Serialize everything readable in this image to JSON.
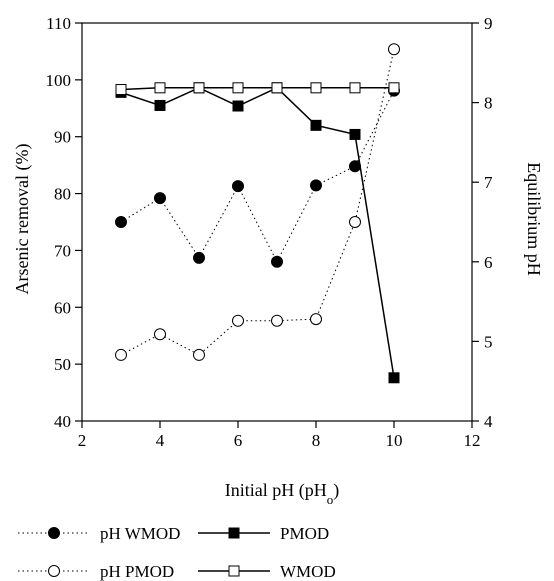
{
  "chart_data": {
    "type": "line",
    "title": "",
    "xlabel": "Initial pH (pH",
    "xlabel_sub": "o",
    "xlabel_suffix": ")",
    "ylabel": "Arsenic removal (%)",
    "y2label": "Equilibrium pH",
    "xlim": [
      2,
      12
    ],
    "ylim": [
      40,
      110
    ],
    "y2lim": [
      4,
      9
    ],
    "xticks": [
      2,
      4,
      6,
      8,
      10,
      12
    ],
    "yticks": [
      40,
      50,
      60,
      70,
      80,
      90,
      100,
      110
    ],
    "y2ticks": [
      4,
      5,
      6,
      7,
      8,
      9
    ],
    "grid": false,
    "legend_position": "bottom",
    "series": [
      {
        "name": "pH WMOD",
        "axis": "right",
        "style": "dotted",
        "marker": "filled-circle",
        "x": [
          3,
          4,
          5,
          6,
          7,
          8,
          9,
          10
        ],
        "y": [
          6.5,
          6.8,
          6.05,
          6.95,
          6.0,
          6.96,
          7.2,
          8.15
        ]
      },
      {
        "name": "PMOD",
        "axis": "left",
        "style": "solid",
        "marker": "filled-square",
        "x": [
          3,
          4,
          5,
          6,
          7,
          8,
          9,
          10
        ],
        "y": [
          97.8,
          95.5,
          98.6,
          95.4,
          98.6,
          92.0,
          90.4,
          47.6
        ]
      },
      {
        "name": "pH PMOD",
        "axis": "right",
        "style": "dotted",
        "marker": "open-circle",
        "x": [
          3,
          4,
          5,
          6,
          7,
          8,
          9,
          10
        ],
        "y": [
          4.83,
          5.09,
          4.83,
          5.26,
          5.26,
          5.28,
          6.5,
          8.67
        ]
      },
      {
        "name": "WMOD",
        "axis": "left",
        "style": "solid",
        "marker": "open-square",
        "x": [
          3,
          4,
          5,
          6,
          7,
          8,
          9,
          10
        ],
        "y": [
          98.3,
          98.6,
          98.6,
          98.6,
          98.6,
          98.6,
          98.6,
          98.6
        ]
      }
    ]
  },
  "legend": {
    "items": [
      {
        "label": "pH WMOD",
        "style": "dotted",
        "marker": "filled-circle"
      },
      {
        "label": "PMOD",
        "style": "solid",
        "marker": "filled-square"
      },
      {
        "label": "pH PMOD",
        "style": "dotted",
        "marker": "open-circle"
      },
      {
        "label": "WMOD",
        "style": "solid",
        "marker": "open-square"
      }
    ]
  }
}
